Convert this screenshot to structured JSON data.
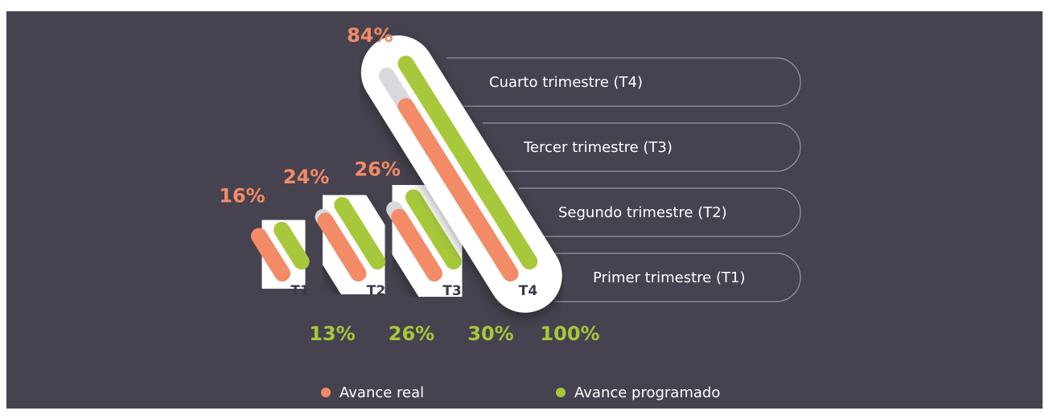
{
  "chart_data": {
    "type": "bar",
    "categories": [
      "T1",
      "T2",
      "T3",
      "T4"
    ],
    "row_labels": [
      "Primer trimestre (T1)",
      "Segundo trimestre (T2)",
      "Tercer trimestre (T3)",
      "Cuarto trimestre (T4)"
    ],
    "series": [
      {
        "name": "Avance real",
        "color": "#f28b66",
        "values": [
          16,
          24,
          26,
          84
        ],
        "value_labels": [
          "16%",
          "24%",
          "26%",
          "84%"
        ]
      },
      {
        "name": "Avance programado",
        "color": "#a6c83a",
        "values": [
          13,
          26,
          30,
          100
        ],
        "value_labels": [
          "13%",
          "26%",
          "30%",
          "100%"
        ]
      }
    ],
    "ylim": [
      0,
      100
    ]
  }
}
